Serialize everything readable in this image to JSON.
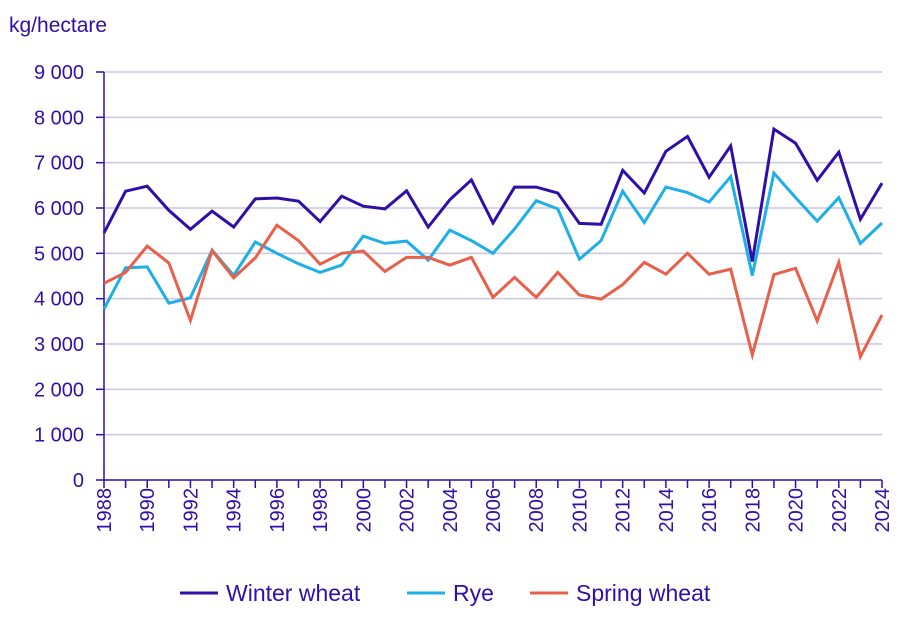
{
  "chart_data": {
    "type": "line",
    "title": "",
    "ylabel": "kg/hectare",
    "xlabel": "",
    "ylim": [
      0,
      9000
    ],
    "xlim": [
      1988,
      2024
    ],
    "y_ticks": [
      {
        "value": 0,
        "label": "0"
      },
      {
        "value": 1000,
        "label": "1 000"
      },
      {
        "value": 2000,
        "label": "2 000"
      },
      {
        "value": 3000,
        "label": "3 000"
      },
      {
        "value": 4000,
        "label": "4 000"
      },
      {
        "value": 5000,
        "label": "5 000"
      },
      {
        "value": 6000,
        "label": "6 000"
      },
      {
        "value": 7000,
        "label": "7 000"
      },
      {
        "value": 8000,
        "label": "8 000"
      },
      {
        "value": 9000,
        "label": "9 000"
      }
    ],
    "x_ticks": [
      {
        "value": 1988,
        "label": "1988"
      },
      {
        "value": 1990,
        "label": "1990"
      },
      {
        "value": 1992,
        "label": "1992"
      },
      {
        "value": 1994,
        "label": "1994"
      },
      {
        "value": 1996,
        "label": "1996"
      },
      {
        "value": 1998,
        "label": "1998"
      },
      {
        "value": 2000,
        "label": "2000"
      },
      {
        "value": 2002,
        "label": "2002"
      },
      {
        "value": 2004,
        "label": "2004"
      },
      {
        "value": 2006,
        "label": "2006"
      },
      {
        "value": 2008,
        "label": "2008"
      },
      {
        "value": 2010,
        "label": "2010"
      },
      {
        "value": 2012,
        "label": "2012"
      },
      {
        "value": 2014,
        "label": "2014"
      },
      {
        "value": 2016,
        "label": "2016"
      },
      {
        "value": 2018,
        "label": "2018"
      },
      {
        "value": 2020,
        "label": "2020"
      },
      {
        "value": 2022,
        "label": "2022"
      },
      {
        "value": 2024,
        "label": "2024"
      }
    ],
    "x": [
      1988,
      1989,
      1990,
      1991,
      1992,
      1993,
      1994,
      1995,
      1996,
      1997,
      1998,
      1999,
      2000,
      2001,
      2002,
      2003,
      2004,
      2005,
      2006,
      2007,
      2008,
      2009,
      2010,
      2011,
      2012,
      2013,
      2014,
      2015,
      2016,
      2017,
      2018,
      2019,
      2020,
      2021,
      2022,
      2023,
      2024
    ],
    "series": [
      {
        "name": "Winter wheat",
        "color": "#2f0fa8",
        "values": [
          5450,
          6370,
          6480,
          5950,
          5530,
          5930,
          5580,
          6200,
          6220,
          6150,
          5700,
          6260,
          6040,
          5980,
          6380,
          5580,
          6180,
          6620,
          5670,
          6460,
          6460,
          6330,
          5660,
          5640,
          6830,
          6330,
          7250,
          7580,
          6680,
          7370,
          4820,
          7740,
          7430,
          6610,
          7230,
          5750,
          6550
        ]
      },
      {
        "name": "Rye",
        "color": "#1eaee8",
        "values": [
          3770,
          4680,
          4700,
          3900,
          4020,
          5070,
          4510,
          5250,
          5000,
          4770,
          4580,
          4740,
          5380,
          5220,
          5270,
          4850,
          5510,
          5280,
          5000,
          5540,
          6160,
          5980,
          4870,
          5280,
          6370,
          5680,
          6460,
          6340,
          6130,
          6690,
          4510,
          6770,
          6230,
          5710,
          6230,
          5220,
          5670
        ]
      },
      {
        "name": "Spring wheat",
        "color": "#e8604a",
        "values": [
          4340,
          4580,
          5160,
          4790,
          3520,
          5060,
          4460,
          4900,
          5620,
          5280,
          4760,
          5000,
          5050,
          4600,
          4910,
          4910,
          4740,
          4910,
          4030,
          4470,
          4030,
          4580,
          4080,
          3990,
          4310,
          4800,
          4540,
          5000,
          4540,
          4650,
          2760,
          4530,
          4670,
          3510,
          4800,
          2720,
          3640
        ]
      }
    ],
    "legend_position": "bottom-center",
    "grid": true
  }
}
